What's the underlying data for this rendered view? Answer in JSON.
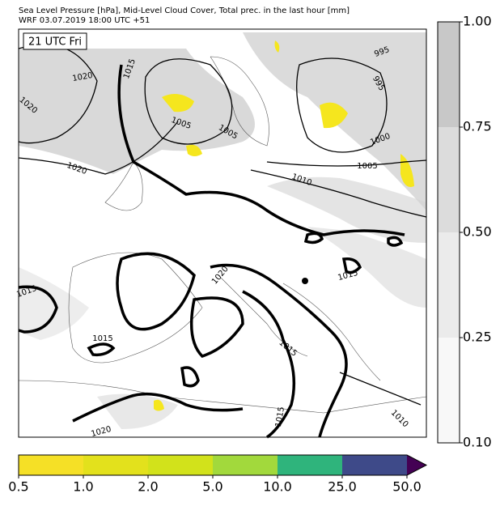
{
  "header": {
    "line1": "Sea Level Pressure [hPa], Mid-Level Cloud Cover, Total prec. in the last hour [mm]",
    "line2": "WRF 03.07.2019 18:00 UTC +51"
  },
  "map": {
    "time_label": "21 UTC Fri",
    "contour_labels": [
      "1020",
      "1015",
      "1020",
      "1020",
      "1005",
      "1005",
      "995",
      "995",
      "1000",
      "1005",
      "1010",
      "1020",
      "1015",
      "1015",
      "1015",
      "1015",
      "1015",
      "1020",
      "1010"
    ]
  },
  "cloud_colorbar": {
    "ticks": [
      "1.00",
      "0.75",
      "0.50",
      "0.25",
      "0.10"
    ],
    "colors": [
      "#c8c8c8",
      "#dcdcdc",
      "#ebebeb",
      "#f8f8f8"
    ]
  },
  "precip_colorbar": {
    "ticks": [
      "0.5",
      "1.0",
      "2.0",
      "5.0",
      "10.0",
      "25.0",
      "50.0"
    ],
    "colors": [
      "#f5e026",
      "#e3e11c",
      "#d2e21b",
      "#a2d93c",
      "#2fb47c",
      "#3e4a89",
      "#440154"
    ]
  }
}
